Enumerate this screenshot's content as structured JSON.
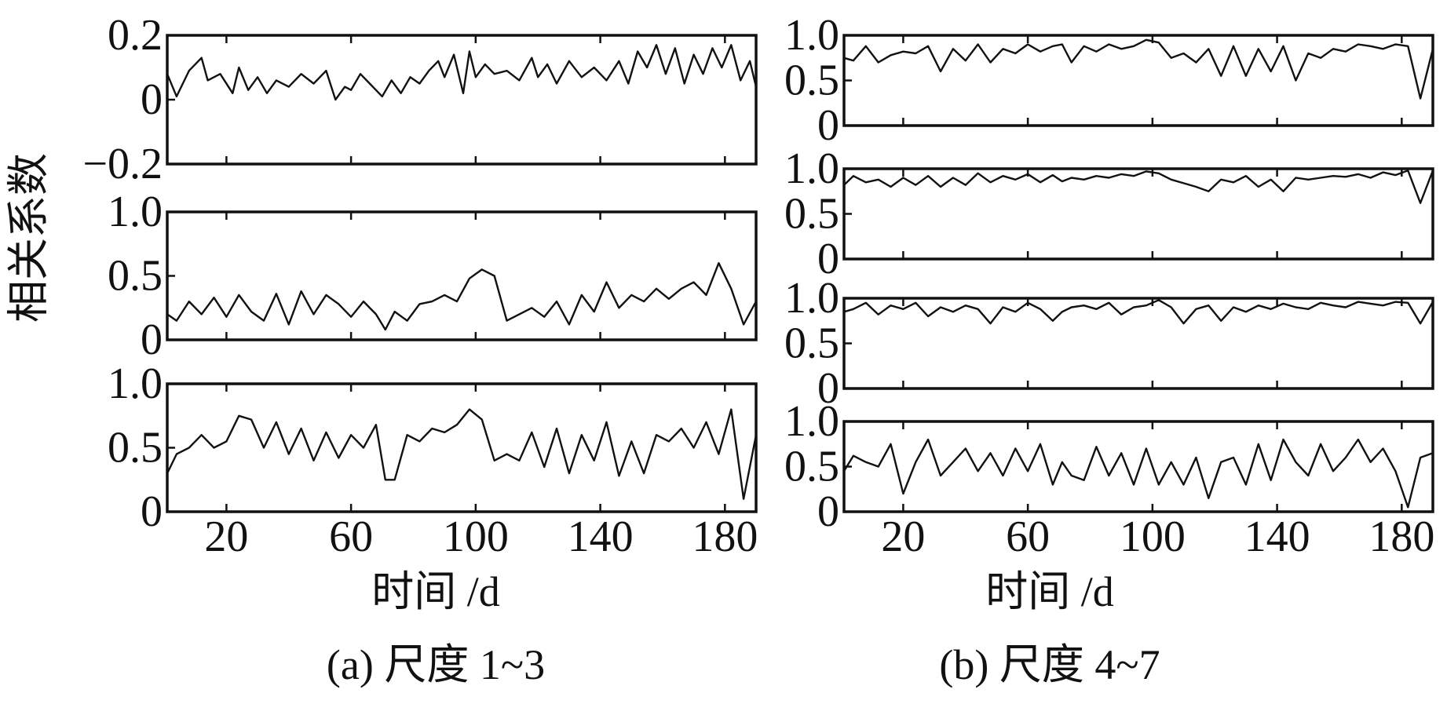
{
  "figure": {
    "ylabel": "相关系数",
    "xlabel_a": "时间 /d",
    "xlabel_b": "时间 /d",
    "caption_a": "(a) 尺度 1~3",
    "caption_b": "(b) 尺度 4~7",
    "line_color": "#111111"
  },
  "chart_data": [
    {
      "type": "line",
      "panel": "a",
      "scale": "尺度1",
      "xlim": [
        1,
        190
      ],
      "ylim": [
        -0.2,
        0.2
      ],
      "yticks": [
        0.2,
        0,
        -0.2
      ],
      "ytick_labels": [
        "0.2",
        "0",
        "−0.2"
      ],
      "xticks": [
        20,
        60,
        100,
        140,
        180
      ],
      "xtick_labels": [],
      "series": [
        {
          "x": [
            1,
            4,
            8,
            12,
            14,
            18,
            22,
            24,
            27,
            30,
            33,
            36,
            40,
            44,
            48,
            52,
            55,
            58,
            60,
            63,
            66,
            70,
            73,
            76,
            79,
            82,
            85,
            88,
            90,
            93,
            96,
            98,
            100,
            103,
            106,
            110,
            114,
            118,
            120,
            123,
            126,
            130,
            134,
            138,
            142,
            146,
            149,
            152,
            155,
            158,
            161,
            164,
            167,
            170,
            173,
            176,
            179,
            182,
            185,
            188,
            190
          ],
          "y": [
            0.08,
            0.01,
            0.09,
            0.13,
            0.06,
            0.08,
            0.02,
            0.1,
            0.03,
            0.07,
            0.02,
            0.06,
            0.04,
            0.08,
            0.05,
            0.09,
            0.0,
            0.04,
            0.03,
            0.08,
            0.05,
            0.01,
            0.06,
            0.02,
            0.07,
            0.05,
            0.09,
            0.12,
            0.07,
            0.14,
            0.02,
            0.15,
            0.07,
            0.11,
            0.08,
            0.09,
            0.06,
            0.13,
            0.07,
            0.11,
            0.05,
            0.12,
            0.07,
            0.1,
            0.06,
            0.12,
            0.05,
            0.15,
            0.1,
            0.17,
            0.08,
            0.16,
            0.05,
            0.14,
            0.08,
            0.16,
            0.1,
            0.17,
            0.06,
            0.12,
            0.04
          ]
        }
      ]
    },
    {
      "type": "line",
      "panel": "a",
      "scale": "尺度2",
      "xlim": [
        1,
        190
      ],
      "ylim": [
        0,
        1.0
      ],
      "yticks": [
        1.0,
        0.5,
        0
      ],
      "ytick_labels": [
        "1.0",
        "0.5",
        "0"
      ],
      "xticks": [
        20,
        60,
        100,
        140,
        180
      ],
      "xtick_labels": [],
      "series": [
        {
          "x": [
            1,
            4,
            8,
            12,
            16,
            20,
            24,
            28,
            32,
            36,
            40,
            44,
            48,
            52,
            56,
            60,
            64,
            68,
            71,
            74,
            78,
            82,
            86,
            90,
            94,
            98,
            102,
            106,
            110,
            114,
            118,
            122,
            126,
            130,
            134,
            138,
            142,
            146,
            150,
            154,
            158,
            162,
            166,
            170,
            174,
            178,
            182,
            186,
            190
          ],
          "y": [
            0.2,
            0.15,
            0.3,
            0.2,
            0.33,
            0.18,
            0.35,
            0.22,
            0.15,
            0.36,
            0.12,
            0.38,
            0.2,
            0.35,
            0.28,
            0.18,
            0.3,
            0.2,
            0.08,
            0.22,
            0.15,
            0.28,
            0.3,
            0.35,
            0.3,
            0.48,
            0.55,
            0.5,
            0.15,
            0.2,
            0.25,
            0.18,
            0.3,
            0.12,
            0.35,
            0.22,
            0.45,
            0.25,
            0.35,
            0.3,
            0.4,
            0.32,
            0.4,
            0.45,
            0.35,
            0.6,
            0.4,
            0.12,
            0.3
          ]
        }
      ]
    },
    {
      "type": "line",
      "panel": "a",
      "scale": "尺度3",
      "xlim": [
        1,
        190
      ],
      "ylim": [
        0,
        1.0
      ],
      "yticks": [
        1.0,
        0.5,
        0
      ],
      "ytick_labels": [
        "1.0",
        "0.5",
        "0"
      ],
      "xticks": [
        20,
        60,
        100,
        140,
        180
      ],
      "xtick_labels": [
        "20",
        "60",
        "100",
        "140",
        "180"
      ],
      "series": [
        {
          "x": [
            1,
            4,
            8,
            12,
            16,
            20,
            24,
            28,
            32,
            36,
            40,
            44,
            48,
            52,
            56,
            60,
            64,
            68,
            71,
            74,
            78,
            82,
            86,
            90,
            94,
            98,
            102,
            106,
            110,
            114,
            118,
            122,
            126,
            130,
            134,
            138,
            142,
            146,
            150,
            154,
            158,
            162,
            166,
            170,
            174,
            178,
            182,
            186,
            190
          ],
          "y": [
            0.3,
            0.45,
            0.5,
            0.6,
            0.5,
            0.55,
            0.75,
            0.72,
            0.5,
            0.7,
            0.45,
            0.65,
            0.4,
            0.62,
            0.42,
            0.6,
            0.5,
            0.68,
            0.25,
            0.25,
            0.6,
            0.55,
            0.65,
            0.62,
            0.68,
            0.8,
            0.72,
            0.4,
            0.45,
            0.4,
            0.62,
            0.35,
            0.65,
            0.3,
            0.6,
            0.4,
            0.7,
            0.28,
            0.55,
            0.3,
            0.6,
            0.55,
            0.65,
            0.5,
            0.7,
            0.45,
            0.8,
            0.1,
            0.6
          ]
        }
      ]
    },
    {
      "type": "line",
      "panel": "b",
      "scale": "尺度4",
      "xlim": [
        1,
        190
      ],
      "ylim": [
        0,
        1.0
      ],
      "yticks": [
        1.0,
        0.5,
        0
      ],
      "ytick_labels": [
        "1.0",
        "0.5",
        "0"
      ],
      "xticks": [
        20,
        60,
        100,
        140,
        180
      ],
      "xtick_labels": [],
      "series": [
        {
          "x": [
            1,
            4,
            8,
            12,
            16,
            20,
            24,
            28,
            32,
            36,
            40,
            44,
            48,
            52,
            56,
            60,
            64,
            68,
            71,
            74,
            78,
            82,
            86,
            90,
            94,
            98,
            102,
            106,
            110,
            114,
            118,
            122,
            126,
            130,
            134,
            138,
            142,
            146,
            150,
            154,
            158,
            162,
            166,
            170,
            174,
            178,
            182,
            186,
            190
          ],
          "y": [
            0.75,
            0.72,
            0.88,
            0.7,
            0.78,
            0.82,
            0.8,
            0.88,
            0.6,
            0.85,
            0.72,
            0.9,
            0.7,
            0.85,
            0.8,
            0.9,
            0.82,
            0.88,
            0.9,
            0.7,
            0.88,
            0.82,
            0.9,
            0.85,
            0.88,
            0.95,
            0.92,
            0.75,
            0.8,
            0.7,
            0.85,
            0.55,
            0.88,
            0.55,
            0.85,
            0.6,
            0.88,
            0.5,
            0.8,
            0.75,
            0.85,
            0.82,
            0.9,
            0.88,
            0.85,
            0.9,
            0.88,
            0.3,
            0.85
          ]
        }
      ]
    },
    {
      "type": "line",
      "panel": "b",
      "scale": "尺度5",
      "xlim": [
        1,
        190
      ],
      "ylim": [
        0,
        1.0
      ],
      "yticks": [
        1.0,
        0.5,
        0
      ],
      "ytick_labels": [
        "1.0",
        "0.5",
        "0"
      ],
      "xticks": [
        20,
        60,
        100,
        140,
        180
      ],
      "xtick_labels": [],
      "series": [
        {
          "x": [
            1,
            4,
            8,
            12,
            16,
            20,
            24,
            28,
            32,
            36,
            40,
            44,
            48,
            52,
            56,
            60,
            64,
            68,
            71,
            74,
            78,
            82,
            86,
            90,
            94,
            98,
            102,
            106,
            110,
            114,
            118,
            122,
            126,
            130,
            134,
            138,
            142,
            146,
            150,
            154,
            158,
            162,
            166,
            170,
            174,
            178,
            182,
            186,
            190
          ],
          "y": [
            0.82,
            0.92,
            0.85,
            0.88,
            0.8,
            0.9,
            0.82,
            0.92,
            0.8,
            0.9,
            0.82,
            0.95,
            0.85,
            0.92,
            0.88,
            0.94,
            0.85,
            0.93,
            0.86,
            0.9,
            0.88,
            0.92,
            0.9,
            0.94,
            0.92,
            0.97,
            0.95,
            0.88,
            0.84,
            0.8,
            0.75,
            0.88,
            0.85,
            0.92,
            0.8,
            0.88,
            0.75,
            0.9,
            0.88,
            0.9,
            0.92,
            0.91,
            0.94,
            0.9,
            0.96,
            0.93,
            0.98,
            0.62,
            0.98
          ]
        }
      ]
    },
    {
      "type": "line",
      "panel": "b",
      "scale": "尺度6",
      "xlim": [
        1,
        190
      ],
      "ylim": [
        0,
        1.0
      ],
      "yticks": [
        1.0,
        0.5,
        0
      ],
      "ytick_labels": [
        "1.0",
        "0.5",
        "0"
      ],
      "xticks": [
        20,
        60,
        100,
        140,
        180
      ],
      "xtick_labels": [],
      "series": [
        {
          "x": [
            1,
            4,
            8,
            12,
            16,
            20,
            24,
            28,
            32,
            36,
            40,
            44,
            48,
            52,
            56,
            60,
            64,
            68,
            71,
            74,
            78,
            82,
            86,
            90,
            94,
            98,
            102,
            106,
            110,
            114,
            118,
            122,
            126,
            130,
            134,
            138,
            142,
            146,
            150,
            154,
            158,
            162,
            166,
            170,
            174,
            178,
            182,
            186,
            190
          ],
          "y": [
            0.85,
            0.88,
            0.95,
            0.82,
            0.92,
            0.88,
            0.95,
            0.8,
            0.9,
            0.85,
            0.92,
            0.88,
            0.72,
            0.9,
            0.85,
            0.95,
            0.88,
            0.75,
            0.85,
            0.9,
            0.92,
            0.88,
            0.95,
            0.82,
            0.9,
            0.92,
            0.98,
            0.9,
            0.72,
            0.88,
            0.92,
            0.75,
            0.9,
            0.85,
            0.92,
            0.88,
            0.94,
            0.9,
            0.88,
            0.95,
            0.92,
            0.9,
            0.96,
            0.94,
            0.92,
            0.96,
            0.95,
            0.72,
            0.96
          ]
        }
      ]
    },
    {
      "type": "line",
      "panel": "b",
      "scale": "尺度7",
      "xlim": [
        1,
        190
      ],
      "ylim": [
        0,
        1.0
      ],
      "yticks": [
        1.0,
        0.5,
        0
      ],
      "ytick_labels": [
        "1.0",
        "0.5",
        "0"
      ],
      "xticks": [
        20,
        60,
        100,
        140,
        180
      ],
      "xtick_labels": [
        "20",
        "60",
        "100",
        "140",
        "180"
      ],
      "series": [
        {
          "x": [
            1,
            4,
            8,
            12,
            16,
            20,
            24,
            28,
            32,
            36,
            40,
            44,
            48,
            52,
            56,
            60,
            64,
            68,
            71,
            74,
            78,
            82,
            86,
            90,
            94,
            98,
            102,
            106,
            110,
            114,
            118,
            122,
            126,
            130,
            134,
            138,
            142,
            146,
            150,
            154,
            158,
            162,
            166,
            170,
            174,
            178,
            182,
            186,
            190
          ],
          "y": [
            0.45,
            0.62,
            0.55,
            0.5,
            0.75,
            0.2,
            0.55,
            0.8,
            0.4,
            0.55,
            0.7,
            0.45,
            0.65,
            0.4,
            0.7,
            0.45,
            0.75,
            0.3,
            0.55,
            0.4,
            0.35,
            0.72,
            0.4,
            0.65,
            0.3,
            0.7,
            0.3,
            0.55,
            0.3,
            0.6,
            0.15,
            0.55,
            0.6,
            0.3,
            0.75,
            0.35,
            0.8,
            0.55,
            0.4,
            0.75,
            0.45,
            0.6,
            0.8,
            0.55,
            0.7,
            0.45,
            0.05,
            0.6,
            0.65
          ]
        }
      ]
    }
  ]
}
